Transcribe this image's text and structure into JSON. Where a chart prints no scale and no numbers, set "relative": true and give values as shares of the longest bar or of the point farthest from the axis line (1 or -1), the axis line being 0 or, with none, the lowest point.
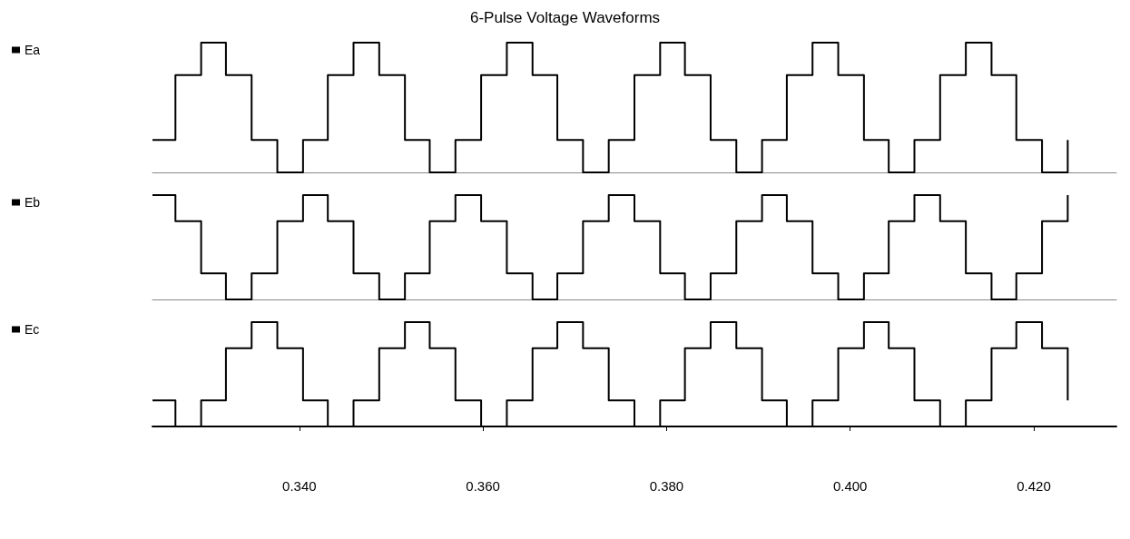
{
  "chart_data": [
    {
      "type": "step",
      "title": "6-Pulse Voltage Waveforms",
      "relative": true,
      "legend": "left",
      "tick_labels": false,
      "xlim": [
        0.324,
        0.429
      ],
      "x": [
        0.324,
        0.3265,
        0.3293,
        0.332,
        0.3348,
        0.3376,
        0.3404,
        0.3431,
        0.3459,
        0.3487,
        0.3515,
        0.3542,
        0.357,
        0.3598,
        0.3626,
        0.3654,
        0.3681,
        0.3709,
        0.3737,
        0.3765,
        0.3793,
        0.382,
        0.3848,
        0.3876,
        0.3904,
        0.3931,
        0.3959,
        0.3987,
        0.4015,
        0.4042,
        0.407,
        0.4098,
        0.4126,
        0.4154,
        0.4181,
        0.4209,
        0.4237
      ],
      "series": [
        {
          "name": "Ea",
          "color": "#000000",
          "values": [
            0.25,
            0.75,
            1,
            0.75,
            0.25,
            0,
            0.25,
            0.75,
            1,
            0.75,
            0.25,
            0,
            0.25,
            0.75,
            1,
            0.75,
            0.25,
            0,
            0.25,
            0.75,
            1,
            0.75,
            0.25,
            0,
            0.25,
            0.75,
            1,
            0.75,
            0.25,
            0,
            0.25,
            0.75,
            1,
            0.75,
            0.25,
            0,
            0.25
          ]
        }
      ]
    },
    {
      "type": "step",
      "relative": true,
      "legend": "left",
      "tick_labels": false,
      "xlim": [
        0.324,
        0.429
      ],
      "x": [
        0.324,
        0.3265,
        0.3293,
        0.332,
        0.3348,
        0.3376,
        0.3404,
        0.3431,
        0.3459,
        0.3487,
        0.3515,
        0.3542,
        0.357,
        0.3598,
        0.3626,
        0.3654,
        0.3681,
        0.3709,
        0.3737,
        0.3765,
        0.3793,
        0.382,
        0.3848,
        0.3876,
        0.3904,
        0.3931,
        0.3959,
        0.3987,
        0.4015,
        0.4042,
        0.407,
        0.4098,
        0.4126,
        0.4154,
        0.4181,
        0.4209,
        0.4237
      ],
      "series": [
        {
          "name": "Eb",
          "color": "#000000",
          "values": [
            1,
            0.75,
            0.25,
            0,
            0.25,
            0.75,
            1,
            0.75,
            0.25,
            0,
            0.25,
            0.75,
            1,
            0.75,
            0.25,
            0,
            0.25,
            0.75,
            1,
            0.75,
            0.25,
            0,
            0.25,
            0.75,
            1,
            0.75,
            0.25,
            0,
            0.25,
            0.75,
            1,
            0.75,
            0.25,
            0,
            0.25,
            0.75,
            1
          ]
        }
      ]
    },
    {
      "type": "step",
      "relative": true,
      "legend": "left",
      "tick_labels": "x",
      "xlim": [
        0.324,
        0.429
      ],
      "xticks": [
        {
          "value": 0.34,
          "label": "0.340"
        },
        {
          "value": 0.36,
          "label": "0.360"
        },
        {
          "value": 0.38,
          "label": "0.380"
        },
        {
          "value": 0.4,
          "label": "0.400"
        },
        {
          "value": 0.42,
          "label": "0.420"
        }
      ],
      "x": [
        0.324,
        0.3265,
        0.3293,
        0.332,
        0.3348,
        0.3376,
        0.3404,
        0.3431,
        0.3459,
        0.3487,
        0.3515,
        0.3542,
        0.357,
        0.3598,
        0.3626,
        0.3654,
        0.3681,
        0.3709,
        0.3737,
        0.3765,
        0.3793,
        0.382,
        0.3848,
        0.3876,
        0.3904,
        0.3931,
        0.3959,
        0.3987,
        0.4015,
        0.4042,
        0.407,
        0.4098,
        0.4126,
        0.4154,
        0.4181,
        0.4209,
        0.4237
      ],
      "series": [
        {
          "name": "Ec",
          "color": "#000000",
          "values": [
            0.25,
            0,
            0.25,
            0.75,
            1,
            0.75,
            0.25,
            0,
            0.25,
            0.75,
            1,
            0.75,
            0.25,
            0,
            0.25,
            0.75,
            1,
            0.75,
            0.25,
            0,
            0.25,
            0.75,
            1,
            0.75,
            0.25,
            0,
            0.25,
            0.75,
            1,
            0.75,
            0.25,
            0,
            0.25,
            0.75,
            1,
            0.75,
            0.25
          ]
        }
      ]
    }
  ]
}
